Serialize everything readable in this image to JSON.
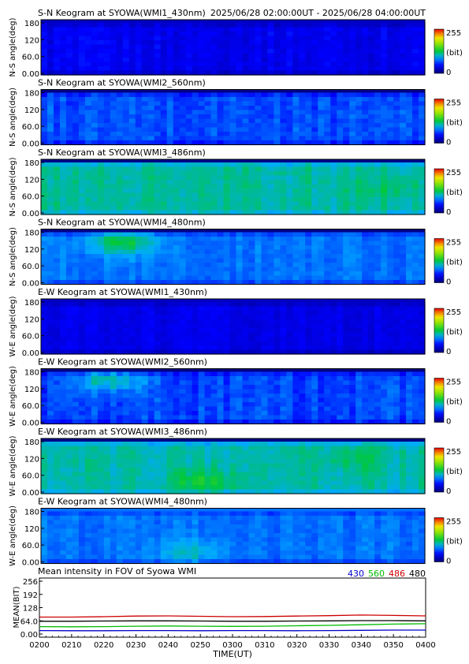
{
  "header": {
    "time_range": "2025/06/28 02:00:00UT - 2025/06/28 04:00:00UT"
  },
  "colorbar": {
    "max_label": "255",
    "unit_label": "(bit)",
    "min_label": "0"
  },
  "keograms": [
    {
      "title": "S-N Keogram at SYOWA(WMI1_430nm)",
      "ylabel": "N-S angle(deg)",
      "yticks": [
        "180",
        "120",
        "60.0",
        "0.00"
      ],
      "base_level": 0.16,
      "variation": 0.05,
      "top_band_level": 0.1,
      "hotspots": []
    },
    {
      "title": "S-N Keogram at SYOWA(WMI2_560nm)",
      "ylabel": "N-S angle(deg)",
      "yticks": [
        "180",
        "120",
        "60.0",
        "0.00"
      ],
      "base_level": 0.26,
      "variation": 0.07,
      "top_band_level": 0.02,
      "hotspots": []
    },
    {
      "title": "S-N Keogram at SYOWA(WMI3_486nm)",
      "ylabel": "N-S angle(deg)",
      "yticks": [
        "180",
        "120",
        "60.0",
        "0.00"
      ],
      "base_level": 0.43,
      "variation": 0.05,
      "top_band_level": 0.02,
      "hotspots": [
        {
          "t": 0.9,
          "angle": 90,
          "level": 0.47
        }
      ]
    },
    {
      "title": "S-N Keogram at SYOWA(WMI4_480nm)",
      "ylabel": "N-S angle(deg)",
      "yticks": [
        "180",
        "120",
        "60.0",
        "0.00"
      ],
      "base_level": 0.3,
      "variation": 0.05,
      "top_band_level": 0.02,
      "hotspots": [
        {
          "t": 0.2,
          "angle": 145,
          "level": 0.5
        }
      ]
    },
    {
      "title": "E-W Keogram at SYOWA(WMI1_430nm)",
      "ylabel": "W-E angle(deg)",
      "yticks": [
        "180",
        "120",
        "60.0",
        "0.00"
      ],
      "base_level": 0.15,
      "variation": 0.04,
      "top_band_level": 0.1,
      "hotspots": []
    },
    {
      "title": "E-W Keogram at SYOWA(WMI2_560nm)",
      "ylabel": "W-E angle(deg)",
      "yticks": [
        "180",
        "120",
        "60.0",
        "0.00"
      ],
      "base_level": 0.25,
      "variation": 0.07,
      "top_band_level": 0.02,
      "hotspots": [
        {
          "t": 0.17,
          "angle": 150,
          "level": 0.42
        }
      ]
    },
    {
      "title": "E-W Keogram at SYOWA(WMI3_486nm)",
      "ylabel": "W-E angle(deg)",
      "yticks": [
        "180",
        "120",
        "60.0",
        "0.00"
      ],
      "base_level": 0.42,
      "variation": 0.05,
      "top_band_level": 0.02,
      "hotspots": [
        {
          "t": 0.42,
          "angle": 40,
          "level": 0.52
        },
        {
          "t": 0.8,
          "angle": 120,
          "level": 0.48
        }
      ]
    },
    {
      "title": "E-W Keogram at SYOWA(WMI4_480nm)",
      "ylabel": "W-E angle(deg)",
      "yticks": [
        "180",
        "120",
        "60.0",
        "0.00"
      ],
      "base_level": 0.3,
      "variation": 0.05,
      "top_band_level": 0.3,
      "hotspots": [
        {
          "t": 0.38,
          "angle": 40,
          "level": 0.4
        }
      ]
    }
  ],
  "chart_data": {
    "type": "line",
    "title": "Mean intensity in FOV of Syowa WMI",
    "xlabel": "TIME(UT)",
    "ylabel": "MEAN(BIT)",
    "ylim": [
      0,
      256
    ],
    "yticks": [
      "256",
      "192",
      "128",
      "64.0",
      "0.00"
    ],
    "xticks": [
      "0200",
      "0210",
      "0220",
      "0230",
      "0240",
      "0250",
      "0300",
      "0310",
      "0320",
      "0330",
      "0340",
      "0350",
      "0400"
    ],
    "x": [
      "0200",
      "0210",
      "0220",
      "0230",
      "0240",
      "0250",
      "0300",
      "0310",
      "0320",
      "0330",
      "0340",
      "0350",
      "0400"
    ],
    "series": [
      {
        "name": "430",
        "color": "#0000cc",
        "values": [
          17,
          16,
          16,
          17,
          17,
          16,
          17,
          17,
          16,
          17,
          18,
          19,
          19
        ]
      },
      {
        "name": "560",
        "color": "#00bb00",
        "values": [
          36,
          35,
          36,
          38,
          39,
          38,
          37,
          38,
          40,
          42,
          45,
          48,
          50
        ]
      },
      {
        "name": "486",
        "color": "#cc0000",
        "values": [
          82,
          82,
          84,
          87,
          88,
          86,
          84,
          85,
          87,
          89,
          92,
          90,
          88
        ]
      },
      {
        "name": "480",
        "color": "#000000",
        "values": [
          62,
          62,
          63,
          64,
          64,
          63,
          62,
          62,
          63,
          64,
          65,
          65,
          64
        ]
      }
    ],
    "legend_position": "top-right"
  }
}
